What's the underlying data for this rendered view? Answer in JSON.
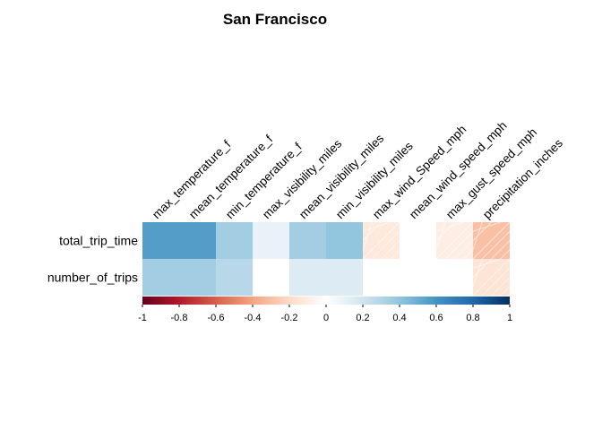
{
  "chart_data": {
    "type": "heatmap",
    "title": "San Francisco",
    "columns": [
      "max_temperature_f",
      "mean_temperature_f",
      "min_temperature_f",
      "max_visibility_miles",
      "mean_visibility_miles",
      "min_visibility_miles",
      "max_wind_Speed_mph",
      "mean_wind_speed_mph",
      "max_gust_speed_mph",
      "precipitation_inches"
    ],
    "rows": [
      "total_trip_time",
      "number_of_trips"
    ],
    "values": [
      [
        0.56,
        0.56,
        0.35,
        0.1,
        0.35,
        0.4,
        -0.12,
        0.0,
        -0.1,
        -0.3
      ],
      [
        0.35,
        0.35,
        0.28,
        0.0,
        0.15,
        0.15,
        0.0,
        0.0,
        0.0,
        -0.15
      ]
    ],
    "colorbar": {
      "range": [
        -1,
        1
      ],
      "ticks": [
        "-1",
        "-0.8",
        "-0.6",
        "-0.4",
        "-0.2",
        "0",
        "0.2",
        "0.4",
        "0.6",
        "0.8",
        "1"
      ],
      "colors": [
        "#67001F",
        "#B2182B",
        "#D6604D",
        "#F4A582",
        "#FDDBC7",
        "#FFFFFF",
        "#D1E5F0",
        "#92C5DE",
        "#4393C3",
        "#2166AC",
        "#053061"
      ]
    },
    "negative_hatch": true
  }
}
